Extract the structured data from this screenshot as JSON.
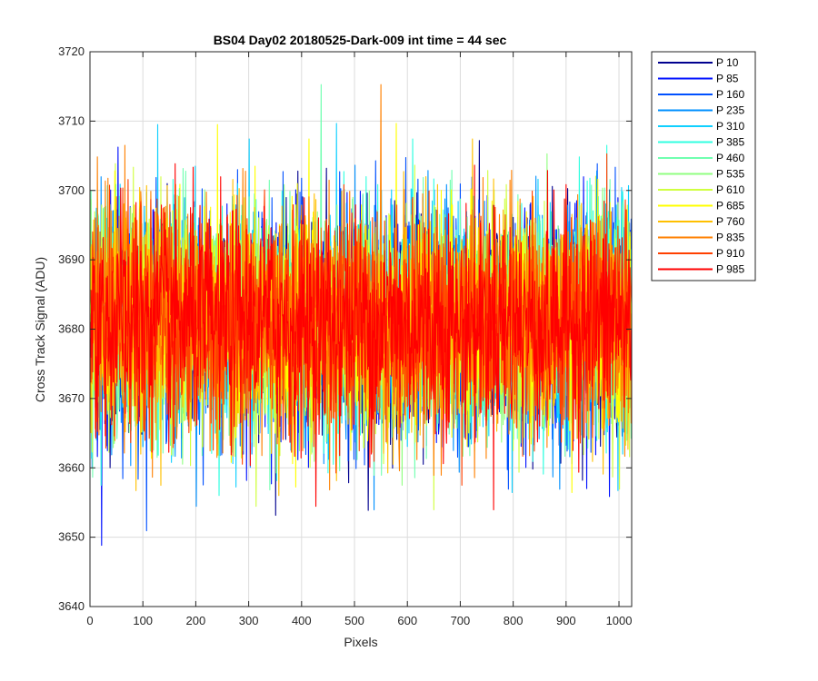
{
  "chart_data": {
    "type": "line",
    "title": "BS04 Day02 20180525-Dark-009 int time = 44 sec",
    "xlabel": "Pixels",
    "ylabel": "Cross Track Signal (ADU)",
    "xlim": [
      0,
      1024
    ],
    "ylim": [
      3640,
      3720
    ],
    "xticks": [
      0,
      100,
      200,
      300,
      400,
      500,
      600,
      700,
      800,
      900,
      1000
    ],
    "yticks": [
      3640,
      3650,
      3660,
      3670,
      3680,
      3690,
      3700,
      3710,
      3720
    ],
    "grid": true,
    "legend_position": "outside-top-right",
    "x_range": [
      1,
      1024
    ],
    "approx_mean": 3681,
    "approx_std": 8,
    "series": [
      {
        "name": "P 10",
        "color": "#00008f"
      },
      {
        "name": "P 85",
        "color": "#0010ff"
      },
      {
        "name": "P 160",
        "color": "#0050ff"
      },
      {
        "name": "P 235",
        "color": "#0090ff"
      },
      {
        "name": "P 310",
        "color": "#10d0ff"
      },
      {
        "name": "P 385",
        "color": "#30ffe0"
      },
      {
        "name": "P 460",
        "color": "#70ffb0"
      },
      {
        "name": "P 535",
        "color": "#90ff80"
      },
      {
        "name": "P 610",
        "color": "#d0ff40"
      },
      {
        "name": "P 685",
        "color": "#ffff00"
      },
      {
        "name": "P 760",
        "color": "#ffc000"
      },
      {
        "name": "P 835",
        "color": "#ff8000"
      },
      {
        "name": "P 910",
        "color": "#ff4000"
      },
      {
        "name": "P 985",
        "color": "#ff0000"
      }
    ]
  }
}
